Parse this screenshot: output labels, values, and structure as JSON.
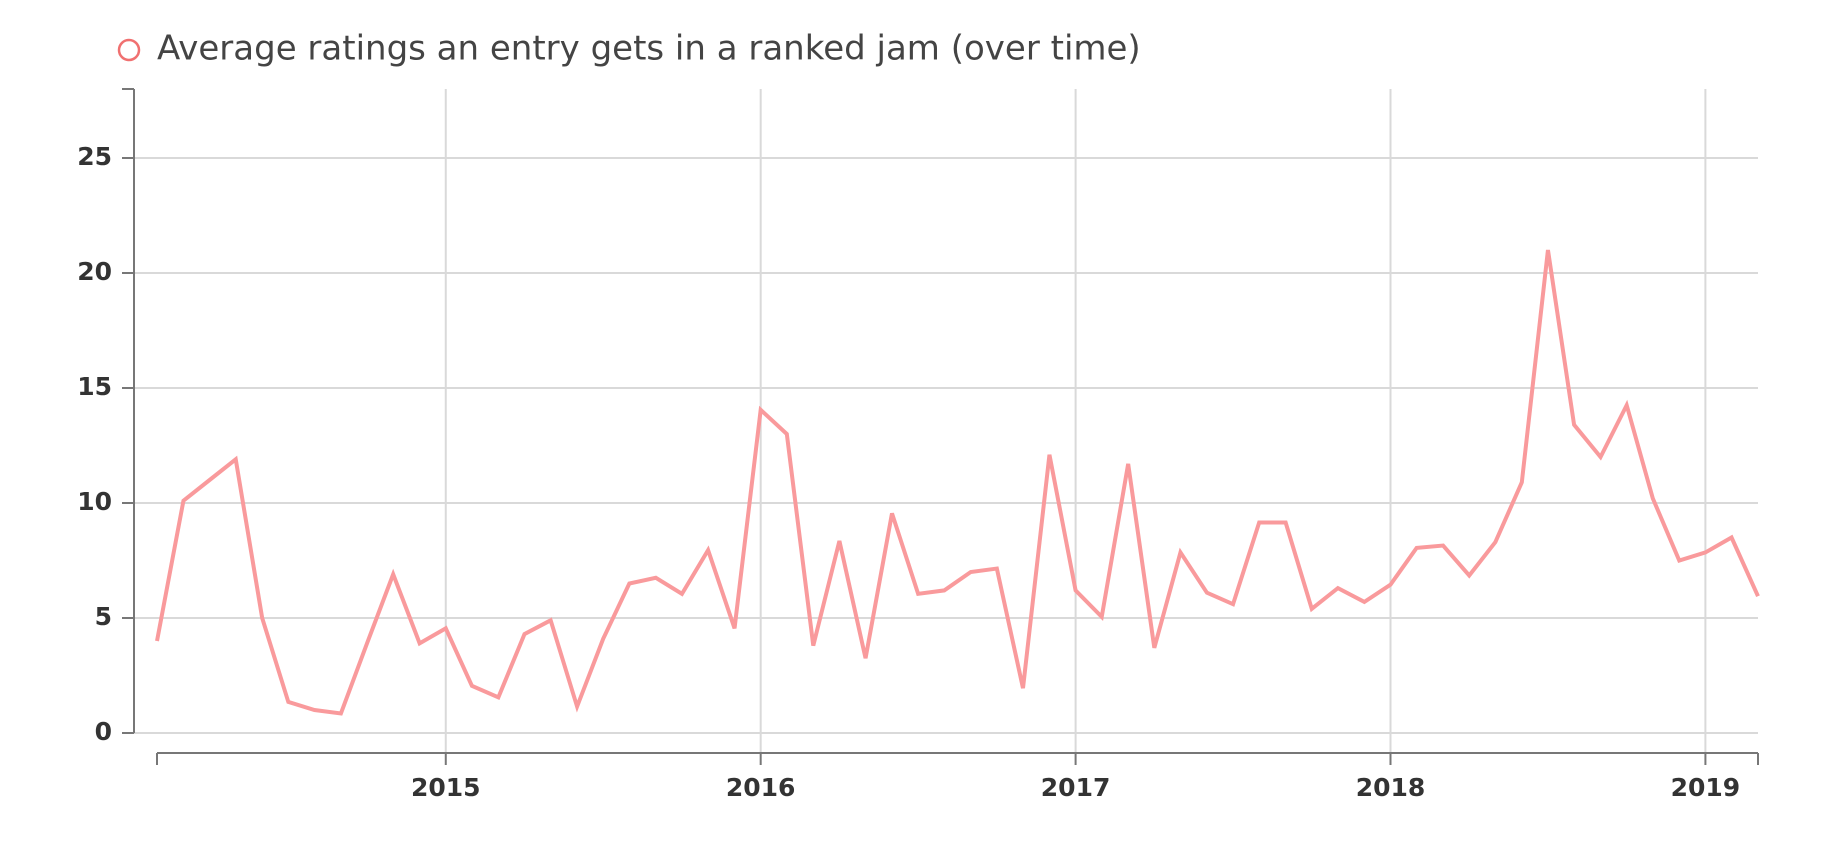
{
  "chart_data": {
    "type": "line",
    "title": "Average ratings an entry gets in a ranked jam (over time)",
    "x": [
      2014.083,
      2014.167,
      2014.25,
      2014.333,
      2014.417,
      2014.5,
      2014.583,
      2014.667,
      2014.75,
      2014.833,
      2014.917,
      2015.0,
      2015.083,
      2015.167,
      2015.25,
      2015.333,
      2015.417,
      2015.5,
      2015.583,
      2015.667,
      2015.75,
      2015.833,
      2015.917,
      2016.0,
      2016.083,
      2016.167,
      2016.25,
      2016.333,
      2016.417,
      2016.5,
      2016.583,
      2016.667,
      2016.75,
      2016.833,
      2016.917,
      2017.0,
      2017.083,
      2017.167,
      2017.25,
      2017.333,
      2017.417,
      2017.5,
      2017.583,
      2017.667,
      2017.75,
      2017.833,
      2017.917,
      2018.0,
      2018.083,
      2018.167,
      2018.25,
      2018.333,
      2018.417,
      2018.5,
      2018.583,
      2018.667,
      2018.75,
      2018.833,
      2018.917,
      2019.0,
      2019.083,
      2019.167
    ],
    "series": [
      {
        "name": "Average ratings an entry gets in a ranked jam (over time)",
        "color": "#f99a9c",
        "values": [
          4.0,
          10.1,
          11.0,
          11.9,
          5.0,
          1.35,
          1.0,
          0.85,
          3.9,
          6.9,
          3.9,
          4.55,
          2.05,
          1.55,
          4.3,
          4.9,
          1.15,
          4.1,
          6.5,
          6.75,
          6.05,
          7.95,
          4.55,
          14.05,
          13.0,
          3.8,
          8.35,
          3.25,
          9.55,
          6.05,
          6.2,
          7.0,
          7.15,
          1.95,
          12.1,
          6.2,
          5.05,
          11.7,
          3.7,
          7.85,
          6.1,
          5.6,
          9.15,
          9.15,
          5.4,
          6.3,
          5.7,
          6.45,
          8.05,
          8.15,
          6.85,
          8.3,
          10.9,
          21.0,
          13.4,
          12.0,
          14.25,
          10.2,
          7.5,
          7.85,
          8.5,
          5.95
        ]
      }
    ],
    "xlim": [
      2014.083,
      2019.167
    ],
    "xticks": [
      2015,
      2016,
      2017,
      2018,
      2019
    ],
    "ylim": [
      0,
      28
    ],
    "yticks": [
      0,
      5,
      10,
      15,
      20,
      25
    ],
    "grid": true
  }
}
